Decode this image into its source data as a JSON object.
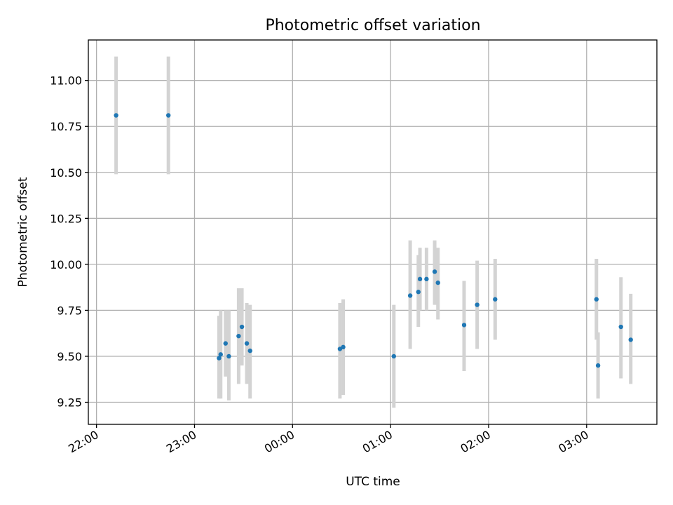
{
  "chart_data": {
    "type": "scatter",
    "title": "Photometric offset variation",
    "xlabel": "UTC time",
    "ylabel": "Photometric offset",
    "xlim": [
      "21:55",
      "03:43"
    ],
    "ylim": [
      9.13,
      11.22
    ],
    "xticks": [
      "22:00",
      "23:00",
      "00:00",
      "01:00",
      "02:00",
      "03:00"
    ],
    "yticks": [
      9.25,
      9.5,
      9.75,
      10.0,
      10.25,
      10.5,
      10.75,
      11.0
    ],
    "ytick_labels": [
      "9.25",
      "9.50",
      "9.75",
      "10.00",
      "10.25",
      "10.50",
      "10.75",
      "11.00"
    ],
    "grid": true,
    "point_color": "#1f77b4",
    "errorbar_color": "#d3d3d3",
    "series": [
      {
        "points": [
          {
            "x": "22:12",
            "y": 10.81,
            "ylo": 10.49,
            "yhi": 11.13
          },
          {
            "x": "22:44",
            "y": 10.81,
            "ylo": 10.49,
            "yhi": 11.13
          },
          {
            "x": "23:15",
            "y": 9.49,
            "ylo": 9.27,
            "yhi": 9.72
          },
          {
            "x": "23:16",
            "y": 9.51,
            "ylo": 9.27,
            "yhi": 9.75
          },
          {
            "x": "23:19",
            "y": 9.57,
            "ylo": 9.39,
            "yhi": 9.75
          },
          {
            "x": "23:21",
            "y": 9.5,
            "ylo": 9.26,
            "yhi": 9.75
          },
          {
            "x": "23:27",
            "y": 9.61,
            "ylo": 9.35,
            "yhi": 9.87
          },
          {
            "x": "23:29",
            "y": 9.66,
            "ylo": 9.45,
            "yhi": 9.87
          },
          {
            "x": "23:32",
            "y": 9.57,
            "ylo": 9.35,
            "yhi": 9.79
          },
          {
            "x": "23:34",
            "y": 9.53,
            "ylo": 9.27,
            "yhi": 9.78
          },
          {
            "x": "00:29",
            "y": 9.54,
            "ylo": 9.27,
            "yhi": 9.79
          },
          {
            "x": "00:31",
            "y": 9.55,
            "ylo": 9.29,
            "yhi": 9.81
          },
          {
            "x": "01:02",
            "y": 9.5,
            "ylo": 9.22,
            "yhi": 9.78
          },
          {
            "x": "01:12",
            "y": 9.83,
            "ylo": 9.54,
            "yhi": 10.13
          },
          {
            "x": "01:17",
            "y": 9.85,
            "ylo": 9.66,
            "yhi": 10.05
          },
          {
            "x": "01:18",
            "y": 9.92,
            "ylo": 9.75,
            "yhi": 10.09
          },
          {
            "x": "01:22",
            "y": 9.92,
            "ylo": 9.75,
            "yhi": 10.09
          },
          {
            "x": "01:27",
            "y": 9.96,
            "ylo": 9.78,
            "yhi": 10.13
          },
          {
            "x": "01:29",
            "y": 9.9,
            "ylo": 9.7,
            "yhi": 10.09
          },
          {
            "x": "01:45",
            "y": 9.67,
            "ylo": 9.42,
            "yhi": 9.91
          },
          {
            "x": "01:53",
            "y": 9.78,
            "ylo": 9.54,
            "yhi": 10.02
          },
          {
            "x": "02:04",
            "y": 9.81,
            "ylo": 9.59,
            "yhi": 10.03
          },
          {
            "x": "03:06",
            "y": 9.81,
            "ylo": 9.59,
            "yhi": 10.03
          },
          {
            "x": "03:07",
            "y": 9.45,
            "ylo": 9.27,
            "yhi": 9.63
          },
          {
            "x": "03:21",
            "y": 9.66,
            "ylo": 9.38,
            "yhi": 9.93
          },
          {
            "x": "03:27",
            "y": 9.59,
            "ylo": 9.35,
            "yhi": 9.84
          }
        ]
      }
    ]
  }
}
